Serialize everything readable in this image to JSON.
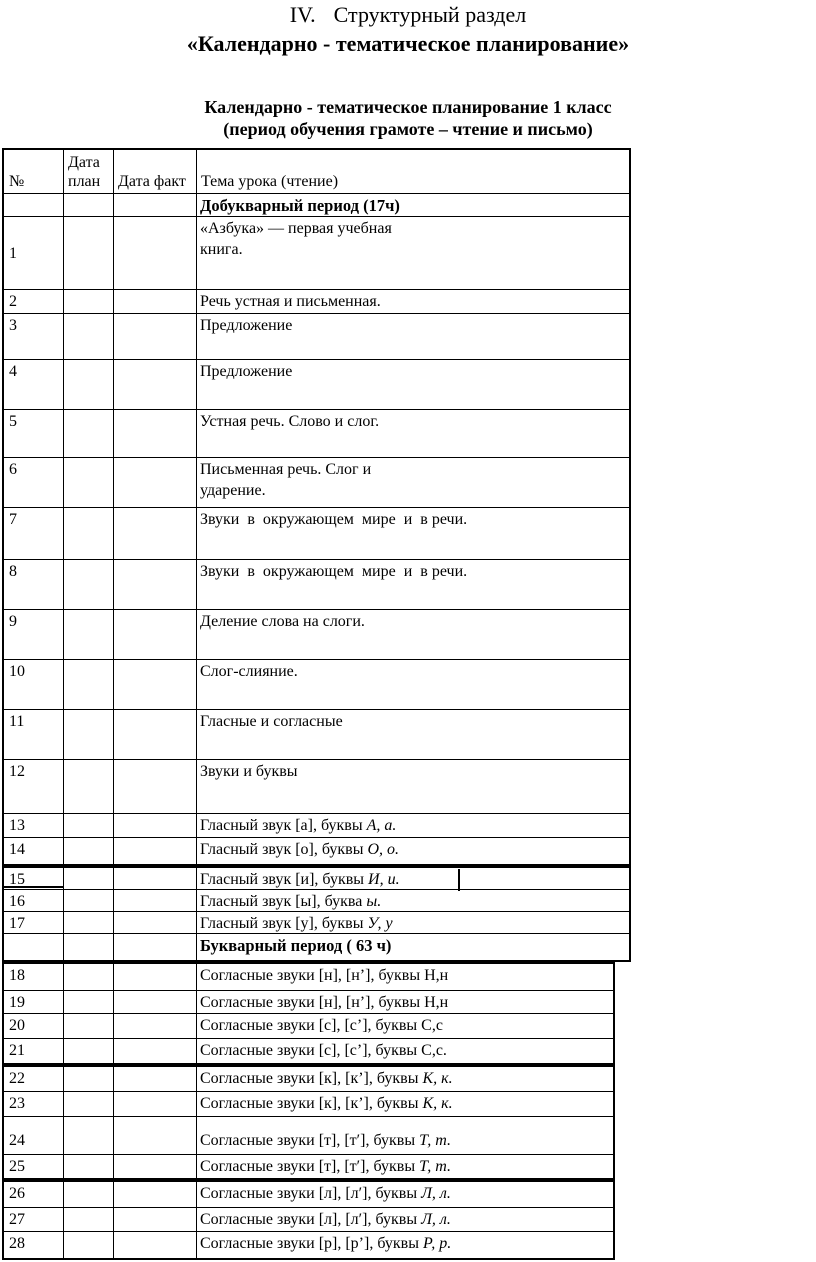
{
  "page": {
    "title_numeral": "IV.",
    "title_text": "Структурный раздел",
    "title_quoted": "«Календарно - тематическое планирование»",
    "caption_line1": "Календарно - тематическое планирование 1 класс",
    "caption_line2": "(период обучения грамоте – чтение и письмо)"
  },
  "table": {
    "headers": {
      "num": "№",
      "date_plan": "Дата план",
      "date_fact": "Дата факт",
      "topic": "Тема урока (чтение)"
    },
    "rows": [
      {
        "type": "section",
        "text": "Добукварный период (17ч)"
      },
      {
        "type": "lesson",
        "num": "1",
        "parts": [
          [
            "«Азбука» — первая учебная\nкнига.",
            0
          ]
        ]
      },
      {
        "type": "lesson",
        "num": "2",
        "parts": [
          [
            "Речь устная и письменная.",
            0
          ]
        ]
      },
      {
        "type": "lesson",
        "num": "3",
        "parts": [
          [
            "Предложение",
            0
          ]
        ]
      },
      {
        "type": "lesson",
        "num": "4",
        "parts": [
          [
            "Предложение",
            0
          ]
        ]
      },
      {
        "type": "lesson",
        "num": "5",
        "parts": [
          [
            "Устная речь. Слово и слог.",
            0
          ]
        ]
      },
      {
        "type": "lesson",
        "num": "6",
        "parts": [
          [
            "Письменная речь. Слог и\nударение.",
            0
          ]
        ]
      },
      {
        "type": "lesson",
        "num": "7",
        "parts": [
          [
            "Звуки  в  окружающем  мире  и  в речи.",
            0
          ]
        ]
      },
      {
        "type": "lesson",
        "num": "8",
        "parts": [
          [
            "Звуки  в  окружающем  мире  и  в речи.",
            0
          ]
        ]
      },
      {
        "type": "lesson",
        "num": "9",
        "parts": [
          [
            "Деление слова на слоги.",
            0
          ]
        ]
      },
      {
        "type": "lesson",
        "num": "10",
        "parts": [
          [
            "Слог-слияние.",
            0
          ]
        ]
      },
      {
        "type": "lesson",
        "num": "11",
        "parts": [
          [
            "Гласные и согласные",
            0
          ]
        ]
      },
      {
        "type": "lesson",
        "num": "12",
        "parts": [
          [
            "Звуки и буквы",
            0
          ]
        ]
      },
      {
        "type": "lesson",
        "num": "13",
        "parts": [
          [
            "Гласный звук [а], буквы ",
            0
          ],
          [
            "А, а.",
            1
          ]
        ]
      },
      {
        "type": "lesson",
        "num": "14",
        "parts": [
          [
            "Гласный звук [о], буквы ",
            0
          ],
          [
            "О, о.",
            1
          ]
        ]
      },
      {
        "type": "lesson",
        "num": "15",
        "parts": [
          [
            "Гласный звук [и], буквы ",
            0
          ],
          [
            "И, и.",
            1
          ]
        ]
      },
      {
        "type": "lesson",
        "num": "16",
        "parts": [
          [
            "Гласный звук [ы], буква ",
            0
          ],
          [
            "ы.",
            1
          ]
        ]
      },
      {
        "type": "lesson",
        "num": "17",
        "parts": [
          [
            "Гласный звук [у], буквы ",
            0
          ],
          [
            "У, у",
            1
          ]
        ]
      },
      {
        "type": "section",
        "text": "Букварный период ( 63 ч)"
      },
      {
        "type": "lesson",
        "num": "18",
        "parts": [
          [
            "Согласные звуки [н], [н’], буквы Н,н",
            0
          ]
        ]
      },
      {
        "type": "lesson",
        "num": "19",
        "parts": [
          [
            "Согласные звуки [н], [н’], буквы Н,н",
            0
          ]
        ]
      },
      {
        "type": "lesson",
        "num": "20",
        "parts": [
          [
            "Согласные звуки [с], [с’], буквы С,с",
            0
          ]
        ]
      },
      {
        "type": "lesson",
        "num": "21",
        "parts": [
          [
            "Согласные звуки [с], [с’], буквы С,с.",
            0
          ]
        ]
      },
      {
        "type": "lesson",
        "num": "22",
        "parts": [
          [
            "Согласные звуки [к], [к’], буквы ",
            0
          ],
          [
            "К, к.",
            1
          ]
        ]
      },
      {
        "type": "lesson",
        "num": "23",
        "parts": [
          [
            "Согласные звуки [к], [к’], буквы ",
            0
          ],
          [
            "К, к.",
            1
          ]
        ]
      },
      {
        "type": "lesson",
        "num": "24",
        "parts": [
          [
            "Согласные звуки [т], [т′], буквы ",
            0
          ],
          [
            "Т, т.",
            1
          ]
        ]
      },
      {
        "type": "lesson",
        "num": "25",
        "parts": [
          [
            "Согласные звуки [т], [т′], буквы ",
            0
          ],
          [
            "Т, т.",
            1
          ]
        ]
      },
      {
        "type": "lesson",
        "num": "26",
        "parts": [
          [
            "Согласные звуки [л], [л′], буквы ",
            0
          ],
          [
            "Л, л.",
            1
          ]
        ]
      },
      {
        "type": "lesson",
        "num": "27",
        "parts": [
          [
            "Согласные звуки [л], [л′], буквы ",
            0
          ],
          [
            "Л, л.",
            1
          ]
        ]
      },
      {
        "type": "lesson",
        "num": "28",
        "parts": [
          [
            "Согласные звуки [р], [р’], буквы ",
            0
          ],
          [
            "Р, р.",
            1
          ]
        ]
      }
    ]
  }
}
